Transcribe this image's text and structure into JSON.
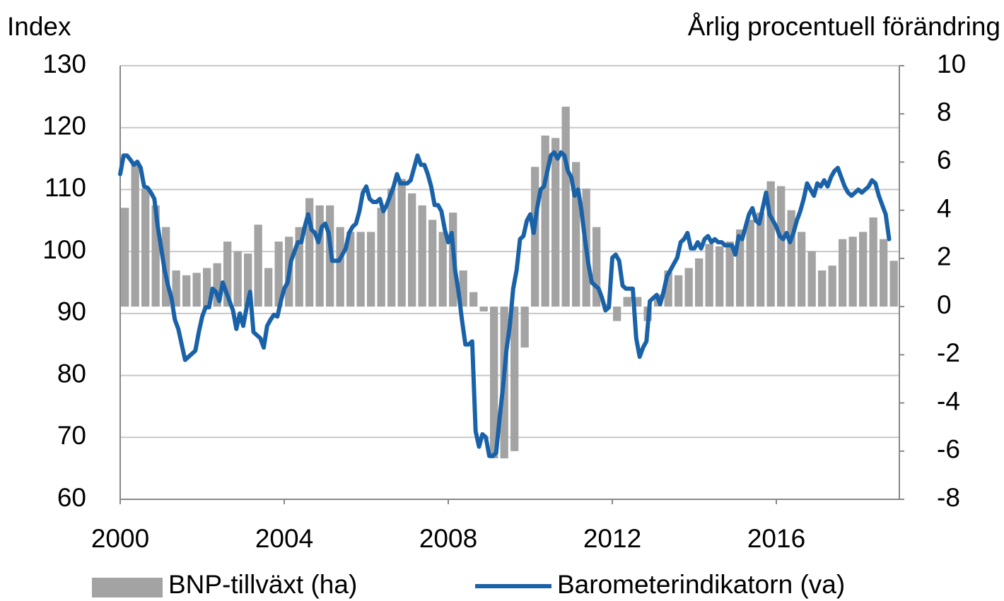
{
  "chart_data": {
    "type": "combo",
    "y_axis_label": "Index",
    "y2_axis_label": "Årlig procentuell förändring",
    "xlim": [
      2000,
      2019
    ],
    "xticks": [
      2000,
      2004,
      2008,
      2012,
      2016
    ],
    "ylim": [
      60,
      130
    ],
    "yticks": [
      60,
      70,
      80,
      90,
      100,
      110,
      120,
      130
    ],
    "y2lim": [
      -8,
      10
    ],
    "y2ticks": [
      -8,
      -6,
      -4,
      -2,
      0,
      2,
      4,
      6,
      8,
      10
    ],
    "grid": true,
    "legend": "bottom",
    "series": [
      {
        "name": "BNP-tillväxt (ha)",
        "type": "bar",
        "axis": "y2",
        "color": "#a3a3a3",
        "x": [
          2000,
          2000.25,
          2000.5,
          2000.75,
          2001,
          2001.25,
          2001.5,
          2001.75,
          2002,
          2002.25,
          2002.5,
          2002.75,
          2003,
          2003.25,
          2003.5,
          2003.75,
          2004,
          2004.25,
          2004.5,
          2004.75,
          2005,
          2005.25,
          2005.5,
          2005.75,
          2006,
          2006.25,
          2006.5,
          2006.75,
          2007,
          2007.25,
          2007.5,
          2007.75,
          2008,
          2008.25,
          2008.5,
          2008.75,
          2009,
          2009.25,
          2009.5,
          2009.75,
          2010,
          2010.25,
          2010.5,
          2010.75,
          2011,
          2011.25,
          2011.5,
          2011.75,
          2012,
          2012.25,
          2012.5,
          2012.75,
          2013,
          2013.25,
          2013.5,
          2013.75,
          2014,
          2014.25,
          2014.5,
          2014.75,
          2015,
          2015.25,
          2015.5,
          2015.75,
          2016,
          2016.25,
          2016.5,
          2016.75,
          2017,
          2017.25,
          2017.5,
          2017.75,
          2018,
          2018.25,
          2018.5,
          2018.75
        ],
        "values": [
          4.1,
          5.9,
          4.9,
          4.2,
          3.3,
          1.5,
          1.3,
          1.4,
          1.6,
          1.8,
          2.7,
          2.3,
          2.2,
          3.4,
          1.6,
          2.7,
          2.9,
          3.3,
          4.5,
          4.2,
          4.2,
          3.3,
          3.1,
          3.1,
          3.1,
          4.1,
          4.9,
          5.3,
          4.7,
          4.2,
          3.6,
          3.1,
          3.9,
          1.5,
          0.6,
          -0.2,
          -6.3,
          -6.3,
          -6.0,
          -1.7,
          5.8,
          7.1,
          7.0,
          8.3,
          6.0,
          4.9,
          3.3,
          0.1,
          -0.6,
          0.4,
          0.4,
          -0.6,
          0.5,
          1.5,
          1.3,
          1.6,
          2.0,
          2.6,
          2.5,
          2.7,
          3.2,
          3.6,
          3.9,
          5.2,
          5.0,
          4.0,
          3.1,
          2.3,
          1.5,
          1.7,
          2.8,
          2.9,
          3.1,
          3.7,
          2.8,
          1.9
        ]
      },
      {
        "name": "Barometerindikatorn (va)",
        "type": "line",
        "axis": "y",
        "color": "#1a62a8",
        "x": [
          2000,
          2000.083,
          2000.167,
          2000.25,
          2000.333,
          2000.417,
          2000.5,
          2000.583,
          2000.667,
          2000.75,
          2000.833,
          2000.917,
          2001,
          2001.083,
          2001.167,
          2001.25,
          2001.333,
          2001.417,
          2001.5,
          2001.583,
          2001.667,
          2001.75,
          2001.833,
          2001.917,
          2002,
          2002.083,
          2002.167,
          2002.25,
          2002.333,
          2002.417,
          2002.5,
          2002.583,
          2002.667,
          2002.75,
          2002.833,
          2002.917,
          2003,
          2003.083,
          2003.167,
          2003.25,
          2003.333,
          2003.417,
          2003.5,
          2003.583,
          2003.667,
          2003.75,
          2003.833,
          2003.917,
          2004,
          2004.083,
          2004.167,
          2004.25,
          2004.333,
          2004.417,
          2004.5,
          2004.583,
          2004.667,
          2004.75,
          2004.833,
          2004.917,
          2005,
          2005.083,
          2005.167,
          2005.25,
          2005.333,
          2005.417,
          2005.5,
          2005.583,
          2005.667,
          2005.75,
          2005.833,
          2005.917,
          2006,
          2006.083,
          2006.167,
          2006.25,
          2006.333,
          2006.417,
          2006.5,
          2006.583,
          2006.667,
          2006.75,
          2006.833,
          2006.917,
          2007,
          2007.083,
          2007.167,
          2007.25,
          2007.333,
          2007.417,
          2007.5,
          2007.583,
          2007.667,
          2007.75,
          2007.833,
          2007.917,
          2008,
          2008.083,
          2008.167,
          2008.25,
          2008.333,
          2008.417,
          2008.5,
          2008.583,
          2008.667,
          2008.75,
          2008.833,
          2008.917,
          2009,
          2009.083,
          2009.167,
          2009.25,
          2009.333,
          2009.417,
          2009.5,
          2009.583,
          2009.667,
          2009.75,
          2009.833,
          2009.917,
          2010,
          2010.083,
          2010.167,
          2010.25,
          2010.333,
          2010.417,
          2010.5,
          2010.583,
          2010.667,
          2010.75,
          2010.833,
          2010.917,
          2011,
          2011.083,
          2011.167,
          2011.25,
          2011.333,
          2011.417,
          2011.5,
          2011.583,
          2011.667,
          2011.75,
          2011.833,
          2011.917,
          2012,
          2012.083,
          2012.167,
          2012.25,
          2012.333,
          2012.417,
          2012.5,
          2012.583,
          2012.667,
          2012.75,
          2012.833,
          2012.917,
          2013,
          2013.083,
          2013.167,
          2013.25,
          2013.333,
          2013.417,
          2013.5,
          2013.583,
          2013.667,
          2013.75,
          2013.833,
          2013.917,
          2014,
          2014.083,
          2014.167,
          2014.25,
          2014.333,
          2014.417,
          2014.5,
          2014.583,
          2014.667,
          2014.75,
          2014.833,
          2014.917,
          2015,
          2015.083,
          2015.167,
          2015.25,
          2015.333,
          2015.417,
          2015.5,
          2015.583,
          2015.667,
          2015.75,
          2015.833,
          2015.917,
          2016,
          2016.083,
          2016.167,
          2016.25,
          2016.333,
          2016.417,
          2016.5,
          2016.583,
          2016.667,
          2016.75,
          2016.833,
          2016.917,
          2017,
          2017.083,
          2017.167,
          2017.25,
          2017.333,
          2017.417,
          2017.5,
          2017.583,
          2017.667,
          2017.75,
          2017.833,
          2017.917,
          2018,
          2018.083,
          2018.167,
          2018.25,
          2018.333,
          2018.417,
          2018.5,
          2018.583,
          2018.667,
          2018.75
        ],
        "values": [
          112.5,
          115.5,
          115.5,
          114.8,
          114,
          114.5,
          113.5,
          110.5,
          110.3,
          109.5,
          108.5,
          104,
          100.5,
          97,
          94.5,
          92.5,
          89,
          87.5,
          85,
          82.5,
          83,
          83.5,
          84,
          87,
          89.5,
          91,
          91,
          94,
          93.5,
          92,
          95,
          93.5,
          92,
          90.5,
          87.5,
          90,
          88,
          91,
          93.5,
          87,
          86.5,
          86,
          84.5,
          88,
          89,
          89.8,
          89.5,
          92,
          94,
          95,
          98.5,
          100,
          101.5,
          101.5,
          104,
          106,
          103.5,
          103,
          101.5,
          104,
          104.5,
          103,
          98.5,
          98.5,
          98.5,
          99.5,
          100.5,
          103,
          104,
          104.5,
          106.5,
          109.5,
          110.5,
          108.5,
          108,
          108,
          108.5,
          106.5,
          107.5,
          109,
          110.5,
          112.5,
          111,
          111,
          111,
          111.5,
          113.5,
          115.5,
          114,
          114,
          112.5,
          110.5,
          107.5,
          107.5,
          106.5,
          103.5,
          101.5,
          103,
          97,
          93.5,
          89,
          85,
          85,
          85.5,
          71,
          68.5,
          70.5,
          70,
          67,
          67,
          67.5,
          73,
          78,
          84,
          88,
          94,
          97,
          102,
          102.5,
          105,
          106,
          103,
          107,
          110,
          110.5,
          113,
          115.5,
          116,
          115,
          116,
          115.5,
          113,
          112,
          109,
          110,
          106.5,
          102,
          98,
          95,
          94.5,
          94,
          92.5,
          90.5,
          91,
          99,
          99.5,
          98.5,
          94.5,
          94,
          94,
          94,
          86,
          83,
          84.5,
          85.5,
          92,
          92.5,
          93,
          91.5,
          93.5,
          96,
          97,
          98,
          99,
          101.5,
          102,
          103,
          100.5,
          100.5,
          101.5,
          100.5,
          102,
          102.5,
          101.5,
          102,
          101.5,
          101.5,
          101,
          101,
          101,
          99.5,
          102.5,
          102,
          104,
          106,
          107,
          105,
          104.5,
          107,
          109.5,
          106,
          105,
          104,
          102.5,
          102,
          103,
          101.5,
          103,
          105,
          106.5,
          108.5,
          111,
          110,
          109,
          111,
          110.5,
          111.5,
          110.5,
          112,
          113,
          113.5,
          112,
          110.5,
          109.5,
          109,
          109.5,
          110,
          109.5,
          110,
          110.5,
          111.5,
          111,
          109,
          107.5,
          106,
          102
        ]
      }
    ]
  }
}
